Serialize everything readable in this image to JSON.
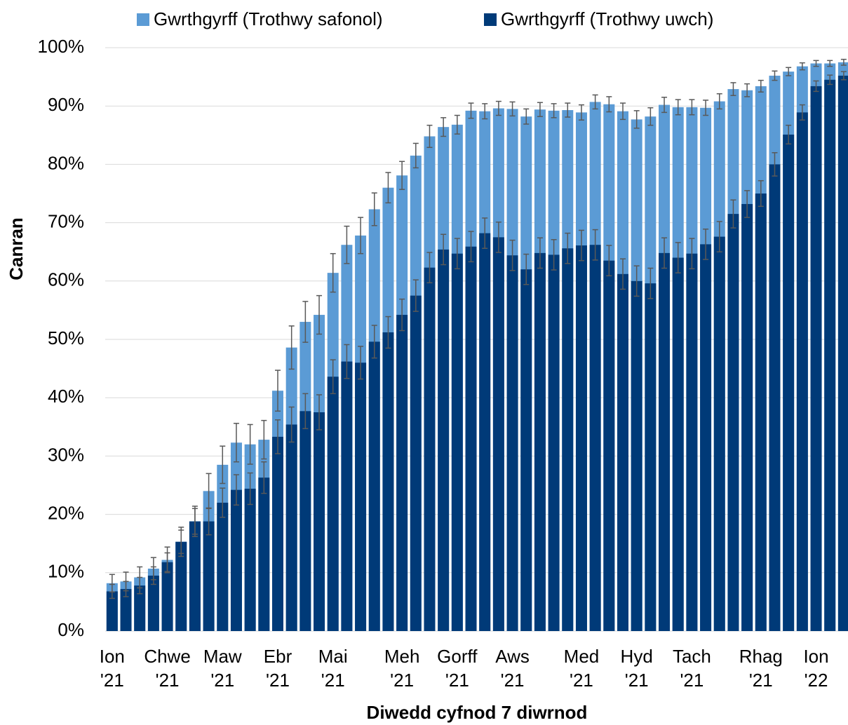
{
  "chart_data": {
    "type": "bar",
    "x_label": "Diwedd cyfnod 7 diwrnod",
    "y_label": "Canran",
    "ylim": [
      0,
      100
    ],
    "yticks": [
      {
        "value": 0,
        "label": "0%"
      },
      {
        "value": 10,
        "label": "10%"
      },
      {
        "value": 20,
        "label": "20%"
      },
      {
        "value": 30,
        "label": "30%"
      },
      {
        "value": 40,
        "label": "40%"
      },
      {
        "value": 50,
        "label": "50%"
      },
      {
        "value": 60,
        "label": "60%"
      },
      {
        "value": 70,
        "label": "70%"
      },
      {
        "value": 80,
        "label": "80%"
      },
      {
        "value": 90,
        "label": "90%"
      },
      {
        "value": 100,
        "label": "100%"
      }
    ],
    "grid": true,
    "legend": "top",
    "categories": [
      "Ion\n'21",
      null,
      null,
      null,
      "Chwe\n'21",
      null,
      null,
      null,
      "Maw\n'21",
      null,
      null,
      null,
      "Ebr\n'21",
      null,
      null,
      null,
      "Mai\n'21",
      null,
      null,
      null,
      null,
      "Meh\n'21",
      null,
      null,
      null,
      "Gorff\n'21",
      null,
      null,
      null,
      "Aws\n'21",
      null,
      null,
      null,
      null,
      "Med\n'21",
      null,
      null,
      null,
      "Hyd\n'21",
      null,
      null,
      null,
      "Tach\n'21",
      null,
      null,
      null,
      null,
      "Rhag\n'21",
      null,
      null,
      null,
      "Ion\n'22",
      null,
      null
    ],
    "series": [
      {
        "name": "Gwrthgyrff (Trothwy safonol)",
        "color": "#5b9bd5",
        "values": [
          8.2,
          8.5,
          9.2,
          10.7,
          12.2,
          15.3,
          18.8,
          24,
          28.5,
          32.3,
          32,
          32.8,
          41.2,
          48.6,
          53,
          54.2,
          61.4,
          66.2,
          67.8,
          72.3,
          76,
          78.1,
          81.5,
          84.8,
          86.4,
          86.8,
          89.2,
          89.1,
          89.6,
          89.5,
          88.2,
          89.4,
          89.2,
          89.3,
          88.9,
          90.7,
          90.3,
          89.1,
          87.7,
          88.2,
          90.2,
          89.8,
          89.8,
          89.7,
          90.8,
          92.9,
          92.7,
          93.4,
          95.2,
          95.9,
          96.8,
          97.3,
          97.3,
          97.5
        ],
        "errors": [
          1.5,
          1.6,
          1.8,
          1.9,
          2.2,
          2.5,
          2.6,
          3,
          3.2,
          3.3,
          3.4,
          3.3,
          3.5,
          3.7,
          3.5,
          3.3,
          3.3,
          3.2,
          3.1,
          2.8,
          2.6,
          2.4,
          2.1,
          1.9,
          1.6,
          1.6,
          1.3,
          1.3,
          1.2,
          1.2,
          1.3,
          1.2,
          1.2,
          1.2,
          1.3,
          1.2,
          1.3,
          1.4,
          1.5,
          1.5,
          1.3,
          1.3,
          1.3,
          1.3,
          1.3,
          1.1,
          1.1,
          1,
          0.8,
          0.7,
          0.6,
          0.5,
          0.5,
          0.5
        ]
      },
      {
        "name": "Gwrthgyrff (Trothwy uwch)",
        "color": "#003a78",
        "values": [
          6.8,
          7.2,
          7.8,
          9.5,
          11.8,
          15.3,
          18.8,
          18.8,
          22,
          24.2,
          24.4,
          26.3,
          33.3,
          35.4,
          37.7,
          37.5,
          43.6,
          46.2,
          46,
          49.6,
          51.2,
          54.2,
          57.5,
          62.3,
          65.4,
          64.7,
          65.9,
          68.2,
          67.5,
          64.4,
          62,
          64.8,
          64.5,
          65.6,
          66.1,
          66.2,
          63.5,
          61.2,
          60,
          59.6,
          64.8,
          64,
          64.7,
          66.3,
          67.6,
          71.5,
          73.2,
          75,
          80,
          85.1,
          88.9,
          93.4,
          94.5,
          95.2
        ],
        "errors": [
          1.2,
          1.3,
          1.4,
          1.5,
          1.6,
          2,
          2.2,
          2.3,
          2.5,
          2.6,
          2.7,
          2.7,
          2.9,
          3,
          3,
          3,
          2.9,
          2.9,
          2.8,
          2.8,
          2.7,
          2.7,
          2.7,
          2.6,
          2.6,
          2.6,
          2.6,
          2.6,
          2.6,
          2.6,
          2.6,
          2.6,
          2.6,
          2.6,
          2.6,
          2.6,
          2.6,
          2.6,
          2.6,
          2.6,
          2.6,
          2.6,
          2.6,
          2.6,
          2.6,
          2.4,
          2.3,
          2.2,
          2,
          1.6,
          1.3,
          0.9,
          0.8,
          0.7
        ]
      }
    ]
  }
}
